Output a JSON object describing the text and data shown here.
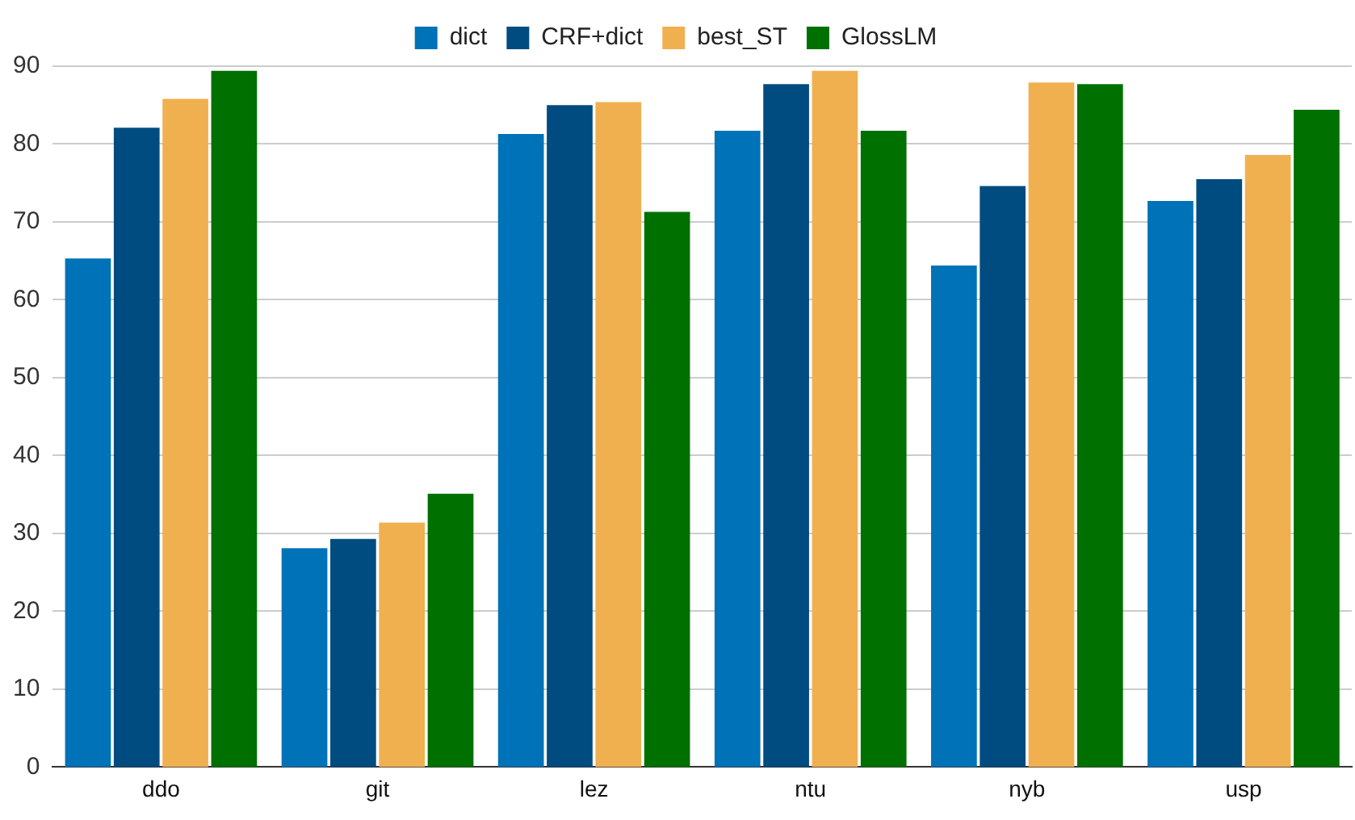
{
  "chart_data": {
    "type": "bar",
    "categories": [
      "ddo",
      "git",
      "lez",
      "ntu",
      "nyb",
      "usp"
    ],
    "series": [
      {
        "name": "dict",
        "color": "#0072b8",
        "values": [
          65.3,
          28.1,
          81.3,
          81.7,
          64.4,
          72.7
        ]
      },
      {
        "name": "CRF+dict",
        "color": "#004c80",
        "values": [
          82.1,
          29.3,
          85.0,
          87.7,
          74.6,
          75.5
        ]
      },
      {
        "name": "best_ST",
        "color": "#f0b050",
        "values": [
          85.8,
          31.4,
          85.4,
          89.4,
          87.9,
          78.6
        ]
      },
      {
        "name": "GlossLM",
        "color": "#007000",
        "values": [
          89.4,
          35.1,
          71.3,
          81.7,
          87.7,
          84.4
        ]
      }
    ],
    "ylim": [
      0,
      90
    ],
    "yticks": [
      0,
      10,
      20,
      30,
      40,
      50,
      60,
      70,
      80,
      90
    ],
    "grid": "y",
    "legend": "top"
  }
}
